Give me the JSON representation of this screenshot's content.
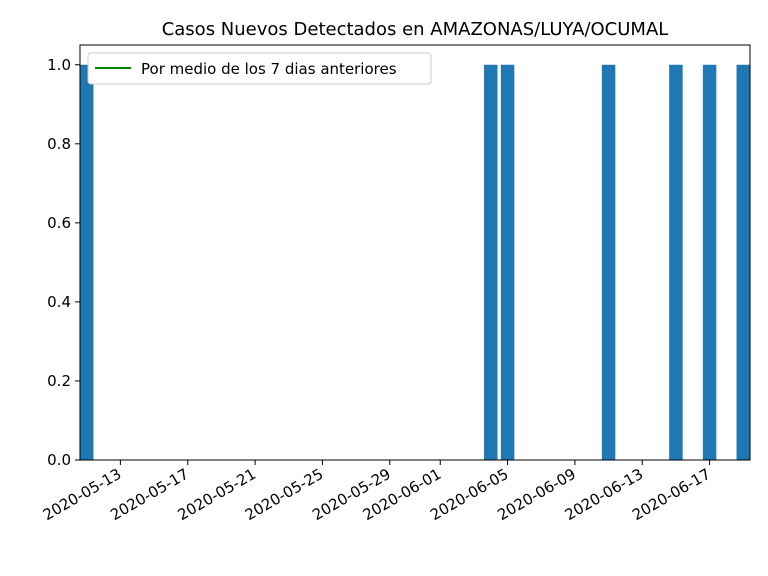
{
  "chart_data": {
    "type": "bar",
    "title": "Casos Nuevos Detectados en AMAZONAS/LUYA/OCUMAL",
    "xlabel": "",
    "ylabel": "",
    "x_start": "2020-05-11",
    "x_end": "2020-06-19",
    "ylim": [
      0,
      1.05
    ],
    "y_ticks": [
      "0.0",
      "0.2",
      "0.4",
      "0.6",
      "0.8",
      "1.0"
    ],
    "x_ticks": [
      "2020-05-13",
      "2020-05-17",
      "2020-05-21",
      "2020-05-25",
      "2020-05-29",
      "2020-06-01",
      "2020-06-05",
      "2020-06-09",
      "2020-06-13",
      "2020-06-17"
    ],
    "bars": [
      {
        "date": "2020-05-11",
        "value": 1
      },
      {
        "date": "2020-06-04",
        "value": 1
      },
      {
        "date": "2020-06-05",
        "value": 1
      },
      {
        "date": "2020-06-11",
        "value": 1
      },
      {
        "date": "2020-06-15",
        "value": 1
      },
      {
        "date": "2020-06-17",
        "value": 1
      },
      {
        "date": "2020-06-19",
        "value": 1
      }
    ],
    "bar_color": "#1f77b4",
    "legend": {
      "location": "upper-left",
      "entries": [
        {
          "label": "Por medio de los 7 dias anteriores",
          "color": "#008000",
          "kind": "line"
        }
      ]
    },
    "grid": false
  }
}
